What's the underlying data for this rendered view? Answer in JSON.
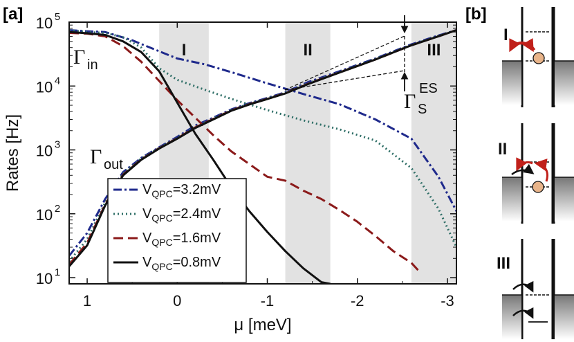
{
  "figure": {
    "panel_a_label": "[a]",
    "panel_b_label": "[b]"
  },
  "chart_data": {
    "type": "line",
    "xlabel": "μ [meV]",
    "ylabel": "Rates [Hz]",
    "yscale": "log",
    "xlim": [
      1.2,
      -3.1
    ],
    "ylim": [
      8,
      100000
    ],
    "x_ticks": [
      1,
      0,
      -1,
      -2,
      -3
    ],
    "x_tick_labels": [
      "1",
      "0",
      "-1",
      "-2",
      "-3"
    ],
    "y_ticks": [
      10,
      100,
      1000,
      10000,
      100000
    ],
    "y_tick_bases": [
      "10",
      "10",
      "10",
      "10",
      "10"
    ],
    "y_tick_exps": [
      "1",
      "2",
      "3",
      "4",
      "5"
    ],
    "regions": [
      {
        "label": "I",
        "x_range": [
          0.2,
          -0.35
        ]
      },
      {
        "label": "II",
        "x_range": [
          -1.2,
          -1.7
        ]
      },
      {
        "label": "III",
        "x_range": [
          -2.6,
          -3.1
        ]
      }
    ],
    "annotations": {
      "gamma_in": {
        "main": "Γ",
        "sub": "in"
      },
      "gamma_out": {
        "main": "Γ",
        "sub": "out"
      },
      "gamma_es": {
        "main": "Γ",
        "sub": "S",
        "sup": "ES"
      }
    },
    "legend_placement": "bottom-center",
    "series": [
      {
        "label_main": "V",
        "label_sub": "QPC",
        "label_value": "=3.2mV",
        "color": "#1f2a8c",
        "dash": "12,4,3,4",
        "width": 3,
        "in": [
          [
            1.2,
            75000
          ],
          [
            1.0,
            72000
          ],
          [
            0.8,
            70000
          ],
          [
            0.5,
            52000
          ],
          [
            0.2,
            35000
          ],
          [
            0.0,
            27000
          ],
          [
            -0.3,
            22000
          ],
          [
            -0.6,
            16500
          ],
          [
            -1.0,
            11000
          ],
          [
            -1.4,
            7500
          ],
          [
            -1.8,
            5200
          ],
          [
            -2.2,
            3000
          ],
          [
            -2.6,
            1500
          ],
          [
            -2.9,
            380
          ],
          [
            -3.1,
            110
          ]
        ],
        "out": [
          [
            1.2,
            22
          ],
          [
            1.0,
            50
          ],
          [
            0.8,
            170
          ],
          [
            0.6,
            450
          ],
          [
            0.4,
            750
          ],
          [
            0.2,
            1100
          ],
          [
            0.0,
            1600
          ],
          [
            -0.2,
            2400
          ],
          [
            -0.4,
            3200
          ],
          [
            -0.6,
            4300
          ],
          [
            -0.8,
            5400
          ],
          [
            -1.0,
            6500
          ],
          [
            -1.2,
            8000
          ],
          [
            -1.45,
            11500
          ],
          [
            -1.8,
            17000
          ],
          [
            -2.2,
            27000
          ],
          [
            -2.6,
            45000
          ],
          [
            -2.9,
            62000
          ],
          [
            -3.1,
            75000
          ]
        ]
      },
      {
        "label_main": "V",
        "label_sub": "QPC",
        "label_value": "=2.4mV",
        "color": "#2e6e66",
        "dash": "2,4",
        "width": 3,
        "in": [
          [
            1.2,
            75000
          ],
          [
            1.0,
            70000
          ],
          [
            0.8,
            68000
          ],
          [
            0.6,
            58000
          ],
          [
            0.4,
            40000
          ],
          [
            0.2,
            19000
          ],
          [
            0.0,
            12500
          ],
          [
            -0.3,
            8800
          ],
          [
            -0.6,
            6300
          ],
          [
            -1.0,
            4200
          ],
          [
            -1.4,
            2900
          ],
          [
            -1.8,
            2100
          ],
          [
            -2.2,
            1400
          ],
          [
            -2.6,
            520
          ],
          [
            -2.9,
            120
          ],
          [
            -3.1,
            30
          ]
        ],
        "out": [
          [
            1.2,
            18
          ],
          [
            1.0,
            40
          ],
          [
            0.8,
            150
          ],
          [
            0.6,
            430
          ],
          [
            0.4,
            730
          ],
          [
            0.2,
            1080
          ],
          [
            0.0,
            1550
          ],
          [
            -0.2,
            2300
          ],
          [
            -0.4,
            3100
          ],
          [
            -0.6,
            4200
          ],
          [
            -0.8,
            5300
          ],
          [
            -1.0,
            6400
          ],
          [
            -1.2,
            7800
          ],
          [
            -1.45,
            11000
          ],
          [
            -1.8,
            16500
          ],
          [
            -2.2,
            26500
          ],
          [
            -2.6,
            44000
          ],
          [
            -2.9,
            61000
          ],
          [
            -3.1,
            75000
          ]
        ]
      },
      {
        "label_main": "V",
        "label_sub": "QPC",
        "label_value": "=1.6mV",
        "color": "#8b1a1a",
        "dash": "14,7",
        "width": 3,
        "in": [
          [
            1.2,
            68000
          ],
          [
            1.0,
            66000
          ],
          [
            0.8,
            60000
          ],
          [
            0.6,
            42000
          ],
          [
            0.4,
            24000
          ],
          [
            0.2,
            12000
          ],
          [
            0.0,
            6000
          ],
          [
            -0.2,
            3200
          ],
          [
            -0.4,
            1700
          ],
          [
            -0.6,
            950
          ],
          [
            -0.8,
            600
          ],
          [
            -1.0,
            380
          ],
          [
            -1.2,
            330
          ],
          [
            -1.4,
            230
          ],
          [
            -1.6,
            170
          ],
          [
            -1.8,
            115
          ],
          [
            -2.0,
            75
          ],
          [
            -2.2,
            45
          ],
          [
            -2.4,
            26
          ],
          [
            -2.6,
            17
          ],
          [
            -2.7,
            12
          ]
        ],
        "out": [
          [
            1.2,
            16
          ],
          [
            1.0,
            35
          ],
          [
            0.8,
            140
          ],
          [
            0.6,
            410
          ],
          [
            0.4,
            710
          ],
          [
            0.2,
            1060
          ],
          [
            0.0,
            1520
          ],
          [
            -0.2,
            2250
          ],
          [
            -0.4,
            3050
          ],
          [
            -0.6,
            4150
          ],
          [
            -0.8,
            5200
          ],
          [
            -1.0,
            6300
          ],
          [
            -1.2,
            7700
          ],
          [
            -1.45,
            10800
          ],
          [
            -1.8,
            16300
          ],
          [
            -2.2,
            26000
          ],
          [
            -2.6,
            43500
          ],
          [
            -2.9,
            60000
          ],
          [
            -3.1,
            75000
          ]
        ]
      },
      {
        "label_main": "V",
        "label_sub": "QPC",
        "label_value": "=0.8mV",
        "color": "#111111",
        "dash": "",
        "width": 3,
        "in": [
          [
            1.2,
            70000
          ],
          [
            1.0,
            67000
          ],
          [
            0.8,
            63000
          ],
          [
            0.6,
            50000
          ],
          [
            0.4,
            34000
          ],
          [
            0.2,
            17000
          ],
          [
            0.0,
            5500
          ],
          [
            -0.2,
            1800
          ],
          [
            -0.4,
            700
          ],
          [
            -0.6,
            260
          ],
          [
            -0.8,
            110
          ],
          [
            -1.0,
            52
          ],
          [
            -1.2,
            26
          ],
          [
            -1.4,
            14
          ],
          [
            -1.6,
            8.5
          ],
          [
            -1.7,
            8
          ]
        ],
        "out": [
          [
            1.2,
            15
          ],
          [
            1.0,
            32
          ],
          [
            0.8,
            135
          ],
          [
            0.6,
            400
          ],
          [
            0.4,
            700
          ],
          [
            0.2,
            1050
          ],
          [
            0.0,
            1500
          ],
          [
            -0.2,
            2200
          ],
          [
            -0.4,
            3000
          ],
          [
            -0.6,
            4100
          ],
          [
            -0.8,
            5150
          ],
          [
            -1.0,
            6250
          ],
          [
            -1.2,
            7650
          ],
          [
            -1.45,
            10700
          ],
          [
            -1.8,
            16200
          ],
          [
            -2.2,
            26000
          ],
          [
            -2.6,
            43500
          ],
          [
            -2.9,
            60000
          ],
          [
            -3.1,
            75000
          ]
        ]
      }
    ]
  },
  "panel_b": {
    "states": [
      "I",
      "II",
      "III"
    ]
  }
}
